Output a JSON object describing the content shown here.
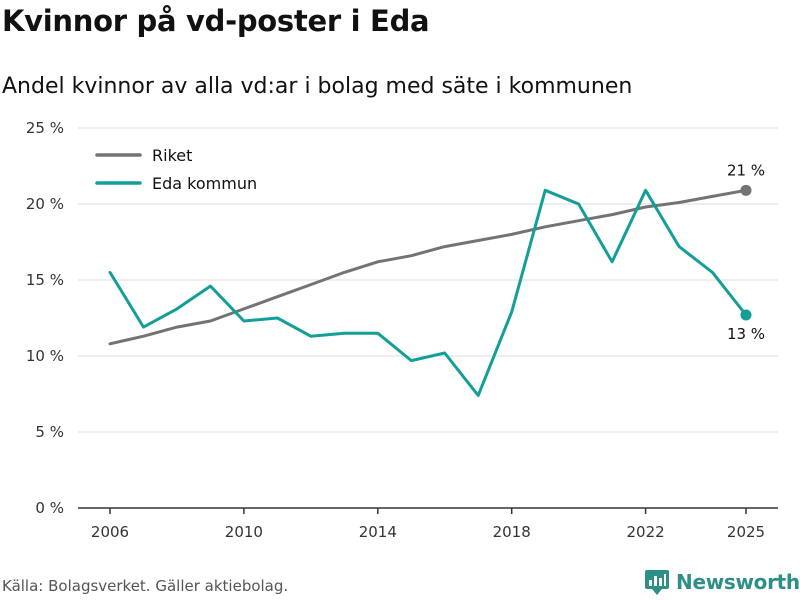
{
  "header": {
    "title": "Kvinnor på vd-poster i Eda",
    "subtitle": "Andel kvinnor av alla vd:ar i bolag med säte i kommunen"
  },
  "footer": {
    "source": "Källa: Bolagsverket. Gäller aktiebolag.",
    "brand": "Newsworthy"
  },
  "colors": {
    "riket": "#737373",
    "eda": "#139e98",
    "grid": "#dddddd",
    "axis": "#333333",
    "brand": "#2e8f87"
  },
  "chart_data": {
    "type": "line",
    "title": "Kvinnor på vd-poster i Eda",
    "subtitle": "Andel kvinnor av alla vd:ar i bolag med säte i kommunen",
    "xlabel": "",
    "ylabel": "",
    "ylim": [
      0,
      25
    ],
    "xlim": [
      2005,
      2026
    ],
    "y_ticks": [
      0,
      5,
      10,
      15,
      20,
      25
    ],
    "y_tick_labels": [
      "0 %",
      "5 %",
      "10 %",
      "15 %",
      "20 %",
      "25 %"
    ],
    "x_ticks": [
      2006,
      2010,
      2014,
      2018,
      2022,
      2025
    ],
    "x_tick_labels": [
      "2006",
      "2010",
      "2014",
      "2018",
      "2022",
      "2025"
    ],
    "grid": true,
    "legend_position": "top-left",
    "x": [
      2006,
      2007,
      2008,
      2009,
      2010,
      2011,
      2012,
      2013,
      2014,
      2015,
      2016,
      2017,
      2018,
      2019,
      2020,
      2021,
      2022,
      2023,
      2024,
      2025
    ],
    "series": [
      {
        "name": "Riket",
        "color": "#737373",
        "values": [
          10.8,
          11.3,
          11.9,
          12.3,
          13.1,
          13.9,
          14.7,
          15.5,
          16.2,
          16.6,
          17.2,
          17.6,
          18.0,
          18.5,
          18.9,
          19.3,
          19.8,
          20.1,
          20.5,
          20.9
        ],
        "end_label": "21 %"
      },
      {
        "name": "Eda kommun",
        "color": "#139e98",
        "values": [
          15.5,
          11.9,
          13.1,
          14.6,
          12.3,
          12.5,
          11.3,
          11.5,
          11.5,
          9.7,
          10.2,
          7.4,
          12.9,
          20.9,
          20.0,
          16.2,
          20.9,
          17.2,
          15.5,
          12.7
        ],
        "end_label": "13 %"
      }
    ]
  }
}
